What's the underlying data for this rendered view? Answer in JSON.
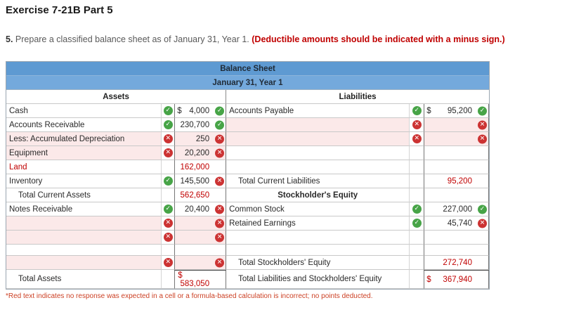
{
  "page": {
    "title": "Exercise 7-21B Part 5",
    "instruction_prefix": "5.",
    "instruction_text": " Prepare a classified balance sheet as of January 31, Year 1. ",
    "instruction_emphasis": "(Deductible amounts should be indicated with a minus sign.)",
    "footnote": "*Red text indicates no response was expected in a cell or a formula-based calculation is incorrect; no points deducted."
  },
  "balance_sheet": {
    "title": "Balance Sheet",
    "subtitle": "January 31, Year 1",
    "left_section_header": "Assets",
    "right_section_header": "Liabilities",
    "rows": [
      {
        "left": {
          "label": "Cash",
          "label_icon": "correct",
          "prefix": "$",
          "value": "4,000",
          "value_icon": "correct"
        },
        "right": {
          "label": "Accounts Payable",
          "label_icon": "correct",
          "prefix": "$",
          "value": "95,200",
          "value_icon": "correct"
        }
      },
      {
        "left": {
          "label": "Accounts Receivable",
          "label_icon": "correct",
          "value": "230,700",
          "value_icon": "correct"
        },
        "right": {
          "label": "",
          "label_icon": "incorrect",
          "label_wrong": true,
          "value": "",
          "value_icon": "incorrect",
          "value_wrong": true
        }
      },
      {
        "left": {
          "label": "Less: Accumulated Depreciation",
          "label_icon": "incorrect",
          "label_wrong": true,
          "value": "250",
          "value_icon": "incorrect",
          "value_wrong": true
        },
        "right": {
          "label": "",
          "label_icon": "incorrect",
          "label_wrong": true,
          "value": "",
          "value_icon": "incorrect",
          "value_wrong": true
        }
      },
      {
        "left": {
          "label": "Equipment",
          "label_icon": "incorrect",
          "label_wrong": true,
          "value": "20,200",
          "value_icon": "incorrect",
          "value_wrong": true
        },
        "right": {}
      },
      {
        "left": {
          "label": "Land",
          "label_red": true,
          "value": "162,000",
          "value_red": true
        },
        "right": {}
      },
      {
        "left": {
          "label": "Inventory",
          "label_icon": "correct",
          "value": "145,500",
          "value_icon": "incorrect"
        },
        "right": {
          "label": "Total Current Liabilities",
          "indent": true,
          "value": "95,200",
          "value_red": true
        }
      },
      {
        "left": {
          "label": "Total Current Assets",
          "indent": true,
          "value": "562,650",
          "value_red": true
        },
        "right": {
          "section": "Stockholder's Equity"
        }
      },
      {
        "left": {
          "label": "Notes Receivable",
          "label_icon": "correct",
          "value": "20,400",
          "value_icon": "incorrect"
        },
        "right": {
          "label": "Common Stock",
          "label_icon": "correct",
          "value": "227,000",
          "value_icon": "correct"
        }
      },
      {
        "left": {
          "label": "",
          "label_icon": "incorrect",
          "label_wrong": true,
          "value": "",
          "value_icon": "incorrect",
          "value_wrong": true
        },
        "right": {
          "label": "Retained Earnings",
          "label_icon": "correct",
          "value": "45,740",
          "value_icon": "incorrect"
        }
      },
      {
        "left": {
          "label": "",
          "label_icon": "incorrect",
          "label_wrong": true,
          "value": "",
          "value_icon": "incorrect",
          "value_wrong": true
        },
        "right": {}
      },
      {
        "height": 16,
        "left": {},
        "right": {}
      },
      {
        "left": {
          "label": "",
          "label_icon": "incorrect",
          "label_wrong": true,
          "value": "",
          "value_icon": "incorrect",
          "value_wrong": true
        },
        "right": {
          "label": "Total Stockholders' Equity",
          "indent": true,
          "value": "272,740",
          "value_red": true
        }
      },
      {
        "height": 27,
        "left": {
          "label": "Total Assets",
          "indent": true,
          "prefix": "$",
          "value": "583,050",
          "value_red": true,
          "wrap": true,
          "total_border": true
        },
        "right": {
          "label": "Total Liabilities and Stockholders' Equity",
          "indent": true,
          "prefix": "$",
          "value": "367,940",
          "value_red": true,
          "total_border": true
        }
      }
    ]
  },
  "icons": {
    "correct": "check-circle-icon",
    "incorrect": "x-circle-icon"
  },
  "colors": {
    "header_blue": "#5e9ad2",
    "subheader_blue": "#74a9dc",
    "wrong_cell_pink": "#fbe9e9",
    "correct_green": "#47a447",
    "incorrect_red": "#cc3333",
    "red_text": "#c00000",
    "footnote_red": "#cc4125"
  }
}
